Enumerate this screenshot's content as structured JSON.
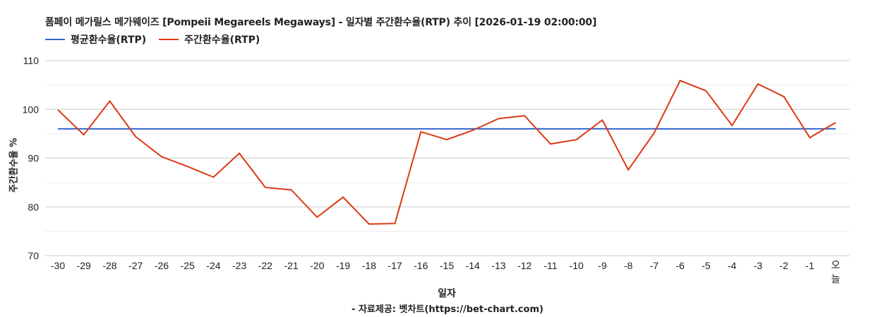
{
  "chart_data": {
    "type": "line",
    "title": "폼페이 메가릴스 메가웨이즈 [Pompeii Megareels Megaways] - 일자별 주간환수율(RTP) 추이 [2026-01-19 02:00:00]",
    "xlabel": "일자",
    "ylabel": "주간환수율 %",
    "ylim": [
      70,
      110
    ],
    "yticks": [
      70,
      80,
      90,
      100,
      110
    ],
    "grid": true,
    "legend_position": "top-left",
    "categories": [
      "-30",
      "-29",
      "-28",
      "-27",
      "-26",
      "-25",
      "-24",
      "-23",
      "-22",
      "-21",
      "-20",
      "-19",
      "-18",
      "-17",
      "-16",
      "-15",
      "-14",
      "-13",
      "-12",
      "-11",
      "-10",
      "-9",
      "-8",
      "-7",
      "-6",
      "-5",
      "-4",
      "-3",
      "-2",
      "-1",
      "오늘"
    ],
    "series": [
      {
        "name": "평균환수율(RTP)",
        "color": "#3366cc",
        "values": [
          96,
          96,
          96,
          96,
          96,
          96,
          96,
          96,
          96,
          96,
          96,
          96,
          96,
          96,
          96,
          96,
          96,
          96,
          96,
          96,
          96,
          96,
          96,
          96,
          96,
          96,
          96,
          96,
          96,
          96,
          96
        ]
      },
      {
        "name": "주간환수율(RTP)",
        "color": "#dc3912",
        "values": [
          99.9,
          94.8,
          101.7,
          94.4,
          90.3,
          88.3,
          86.1,
          91.0,
          84.0,
          83.5,
          77.9,
          82.0,
          76.5,
          76.6,
          95.4,
          93.8,
          95.7,
          98.1,
          98.7,
          92.9,
          93.8,
          97.8,
          87.6,
          95.2,
          105.9,
          103.8,
          96.7,
          105.2,
          102.6,
          94.2,
          97.3
        ]
      }
    ]
  },
  "header": {
    "title": "폼페이 메가릴스 메가웨이즈 [Pompeii Megareels Megaways] - 일자별 주간환수율(RTP) 추이 [2026-01-19 02:00:00]"
  },
  "legend": {
    "items": [
      {
        "label": "평균환수율(RTP)",
        "color": "#3366cc"
      },
      {
        "label": "주간환수율(RTP)",
        "color": "#dc3912"
      }
    ]
  },
  "axes": {
    "ylabel": "주간환수율 %",
    "xlabel": "일자",
    "today_label_line1": "오",
    "today_label_line2": "늘"
  },
  "footer": {
    "credit": "- 자료제공: 벳차트(https://bet-chart.com)"
  }
}
